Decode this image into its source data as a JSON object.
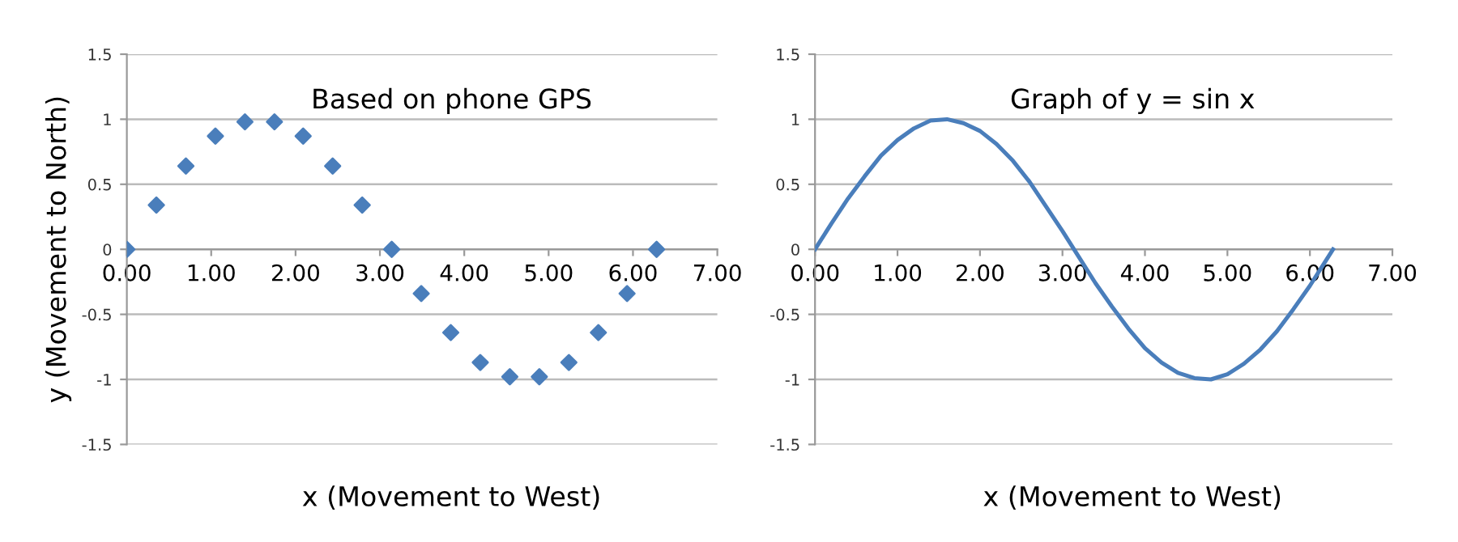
{
  "chart_data": [
    {
      "type": "scatter",
      "title": "Based on phone GPS",
      "xlabel": "x (Movement to West)",
      "ylabel": "y (Movement to North)",
      "x": [
        0,
        0.35,
        0.7,
        1.05,
        1.4,
        1.75,
        2.09,
        2.44,
        2.79,
        3.14,
        3.49,
        3.84,
        4.19,
        4.54,
        4.89,
        5.24,
        5.59,
        5.93,
        6.28
      ],
      "series": [
        {
          "color": "#4a7ebb",
          "values": [
            0,
            0.34,
            0.64,
            0.87,
            0.98,
            0.98,
            0.87,
            0.64,
            0.34,
            0,
            -0.34,
            -0.64,
            -0.87,
            -0.98,
            -0.98,
            -0.87,
            -0.64,
            -0.34,
            0
          ]
        }
      ],
      "marker": "diamond",
      "grid": "y",
      "xlim": [
        0,
        7
      ],
      "xticks": [
        {
          "value": 0,
          "label": "0.00"
        },
        {
          "value": 1,
          "label": "1.00"
        },
        {
          "value": 2,
          "label": "2.00"
        },
        {
          "value": 3,
          "label": "3.00"
        },
        {
          "value": 4,
          "label": "4.00"
        },
        {
          "value": 5,
          "label": "5.00"
        },
        {
          "value": 6,
          "label": "6.00"
        },
        {
          "value": 7,
          "label": "7.00"
        }
      ],
      "ylim": [
        -1.5,
        1.5
      ],
      "yticks": [
        {
          "value": 1.5,
          "label": "1.5"
        },
        {
          "value": 1,
          "label": "1"
        },
        {
          "value": 0.5,
          "label": "0.5"
        },
        {
          "value": 0,
          "label": "0"
        },
        {
          "value": -0.5,
          "label": "-0.5"
        },
        {
          "value": -1,
          "label": "-1"
        },
        {
          "value": -1.5,
          "label": "-1.5"
        }
      ]
    },
    {
      "type": "line",
      "title": "Graph of y = sin x",
      "xlabel": "x (Movement to West)",
      "x": [
        0,
        0.2,
        0.4,
        0.6,
        0.8,
        1.0,
        1.2,
        1.4,
        1.6,
        1.8,
        2.0,
        2.2,
        2.4,
        2.6,
        2.8,
        3.0,
        3.2,
        3.4,
        3.6,
        3.8,
        4.0,
        4.2,
        4.4,
        4.6,
        4.8,
        5.0,
        5.2,
        5.4,
        5.6,
        5.8,
        6.0,
        6.2,
        6.28
      ],
      "series": [
        {
          "color": "#4a7ebb",
          "values": [
            0,
            0.2,
            0.39,
            0.56,
            0.72,
            0.84,
            0.93,
            0.99,
            1.0,
            0.97,
            0.91,
            0.81,
            0.68,
            0.52,
            0.33,
            0.14,
            -0.06,
            -0.26,
            -0.44,
            -0.61,
            -0.76,
            -0.87,
            -0.95,
            -0.99,
            -1.0,
            -0.96,
            -0.88,
            -0.77,
            -0.63,
            -0.46,
            -0.28,
            -0.08,
            0
          ]
        }
      ],
      "marker": "none",
      "line_style": "solid",
      "grid": "y",
      "xlim": [
        0,
        7
      ],
      "xticks": [
        {
          "value": 0,
          "label": "0.00"
        },
        {
          "value": 1,
          "label": "1.00"
        },
        {
          "value": 2,
          "label": "2.00"
        },
        {
          "value": 3,
          "label": "3.00"
        },
        {
          "value": 4,
          "label": "4.00"
        },
        {
          "value": 5,
          "label": "5.00"
        },
        {
          "value": 6,
          "label": "6.00"
        },
        {
          "value": 7,
          "label": "7.00"
        }
      ],
      "ylim": [
        -1.5,
        1.5
      ],
      "yticks": [
        {
          "value": 1.5,
          "label": "1.5"
        },
        {
          "value": 1,
          "label": "1"
        },
        {
          "value": 0.5,
          "label": "0.5"
        },
        {
          "value": 0,
          "label": "0"
        },
        {
          "value": -0.5,
          "label": "-0.5"
        },
        {
          "value": -1,
          "label": "-1"
        },
        {
          "value": -1.5,
          "label": "-1.5"
        }
      ]
    }
  ]
}
